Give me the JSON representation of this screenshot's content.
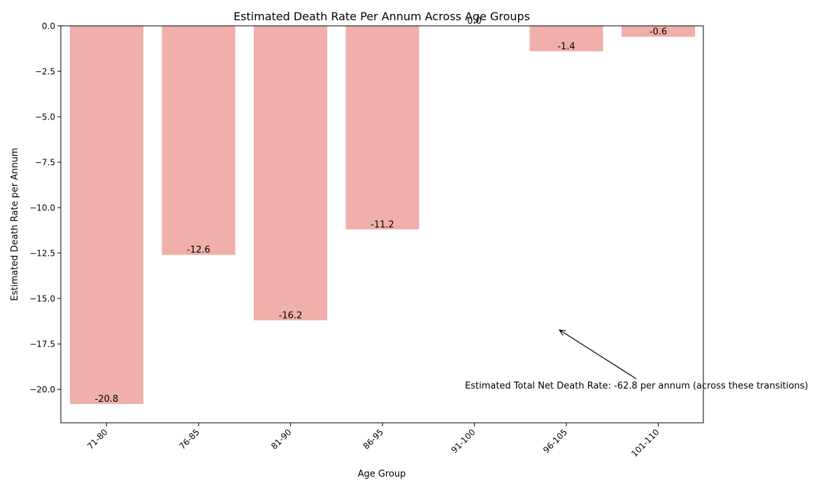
{
  "chart_data": {
    "type": "bar",
    "title": "Estimated Death Rate Per Annum Across Age Groups",
    "xlabel": "Age Group",
    "ylabel": "Estimated Death Rate per Annum",
    "categories": [
      "71-80",
      "76-85",
      "81-90",
      "86-95",
      "91-100",
      "96-105",
      "101-110"
    ],
    "values": [
      -20.8,
      -12.6,
      -16.2,
      -11.2,
      0.0,
      -1.4,
      -0.6
    ],
    "data_labels": [
      "-20.8",
      "-12.6",
      "-16.2",
      "-11.2",
      "0.0",
      "-1.4",
      "-0.6"
    ],
    "ylim": [
      -21.84,
      0.0
    ],
    "yticks": [
      0.0,
      -2.5,
      -5.0,
      -7.5,
      -10.0,
      -12.5,
      -15.0,
      -17.5,
      -20.0
    ],
    "ytick_labels": [
      "0.0",
      "−2.5",
      "−5.0",
      "−7.5",
      "−10.0",
      "−12.5",
      "−15.0",
      "−17.5",
      "−20.0"
    ],
    "bar_color": "#f0afaa",
    "grid": false,
    "annotation": {
      "text": "Estimated Total Net Death Rate: -62.8 per annum (across these transitions)",
      "arrow_target": {
        "category_index": 5,
        "value": -16.7
      }
    }
  }
}
